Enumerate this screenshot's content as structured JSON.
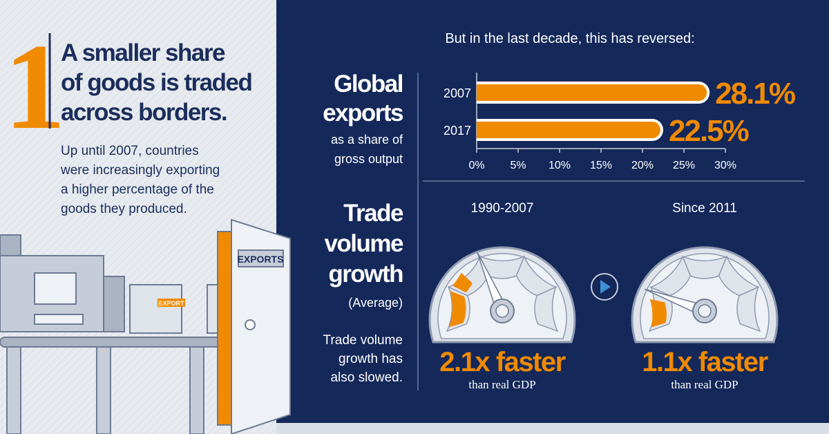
{
  "left": {
    "number": "1",
    "title": [
      "A smaller share",
      "of goods is traded",
      "across borders."
    ],
    "body": [
      "Up until 2007, countries",
      "were increasingly exporting",
      "a higher percentage of the",
      "goods they produced."
    ],
    "illustration_labels": [
      "EXPORTS",
      "EXPORT"
    ]
  },
  "intro": "But in the last decade, this has reversed:",
  "exports_label": {
    "title": [
      "Global",
      "exports"
    ],
    "subtitle": [
      "as a share of",
      "gross output"
    ]
  },
  "chart_data": {
    "type": "bar",
    "orientation": "horizontal",
    "categories": [
      "2007",
      "2017"
    ],
    "values": [
      28.1,
      22.5
    ],
    "value_labels": [
      "28.1%",
      "22.5%"
    ],
    "color": "#f08a00",
    "xlim": [
      0,
      30
    ],
    "xticks": [
      {
        "value": 0,
        "label": "0%"
      },
      {
        "value": 5,
        "label": "5%"
      },
      {
        "value": 10,
        "label": "10%"
      },
      {
        "value": 15,
        "label": "15%"
      },
      {
        "value": 20,
        "label": "20%"
      },
      {
        "value": 25,
        "label": "25%"
      },
      {
        "value": 30,
        "label": "30%"
      }
    ]
  },
  "growth": {
    "title": [
      "Trade",
      "volume",
      "growth"
    ],
    "subtitle": "(Average)",
    "note": [
      "Trade volume",
      "growth has",
      "also slowed."
    ],
    "gauges": [
      {
        "period": "1990-2007",
        "value": "2.1x faster",
        "caption": "than real GDP"
      },
      {
        "period": "Since 2011",
        "value": "1.1x faster",
        "caption": "than real GDP"
      }
    ]
  }
}
